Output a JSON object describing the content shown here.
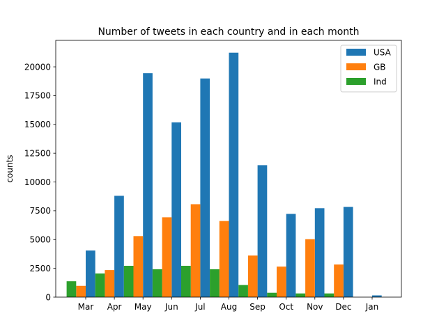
{
  "chart_data": {
    "type": "bar",
    "title": "Number of tweets in each country and in each month",
    "xlabel": "",
    "ylabel": "counts",
    "categories": [
      "Mar",
      "Apr",
      "May",
      "Jun",
      "Jul",
      "Aug",
      "Sep",
      "Oct",
      "Nov",
      "Dec",
      "Jan"
    ],
    "ylim": [
      0,
      22300
    ],
    "yticks": [
      0,
      2500,
      5000,
      7500,
      10000,
      12500,
      15000,
      17500,
      20000
    ],
    "grid": false,
    "legend_position": "top-right",
    "series": [
      {
        "name": "USA",
        "color": "#1f77b4",
        "values": [
          4050,
          8800,
          19450,
          15180,
          18990,
          21230,
          11460,
          7230,
          7720,
          7840,
          150
        ]
      },
      {
        "name": "GB",
        "color": "#ff7f0e",
        "values": [
          980,
          2350,
          5300,
          6930,
          8070,
          6610,
          3610,
          2650,
          5030,
          2830,
          0
        ]
      },
      {
        "name": "Ind",
        "color": "#2ca02c",
        "values": [
          1380,
          2050,
          2720,
          2420,
          2720,
          2420,
          1050,
          380,
          320,
          320,
          0
        ]
      }
    ]
  }
}
